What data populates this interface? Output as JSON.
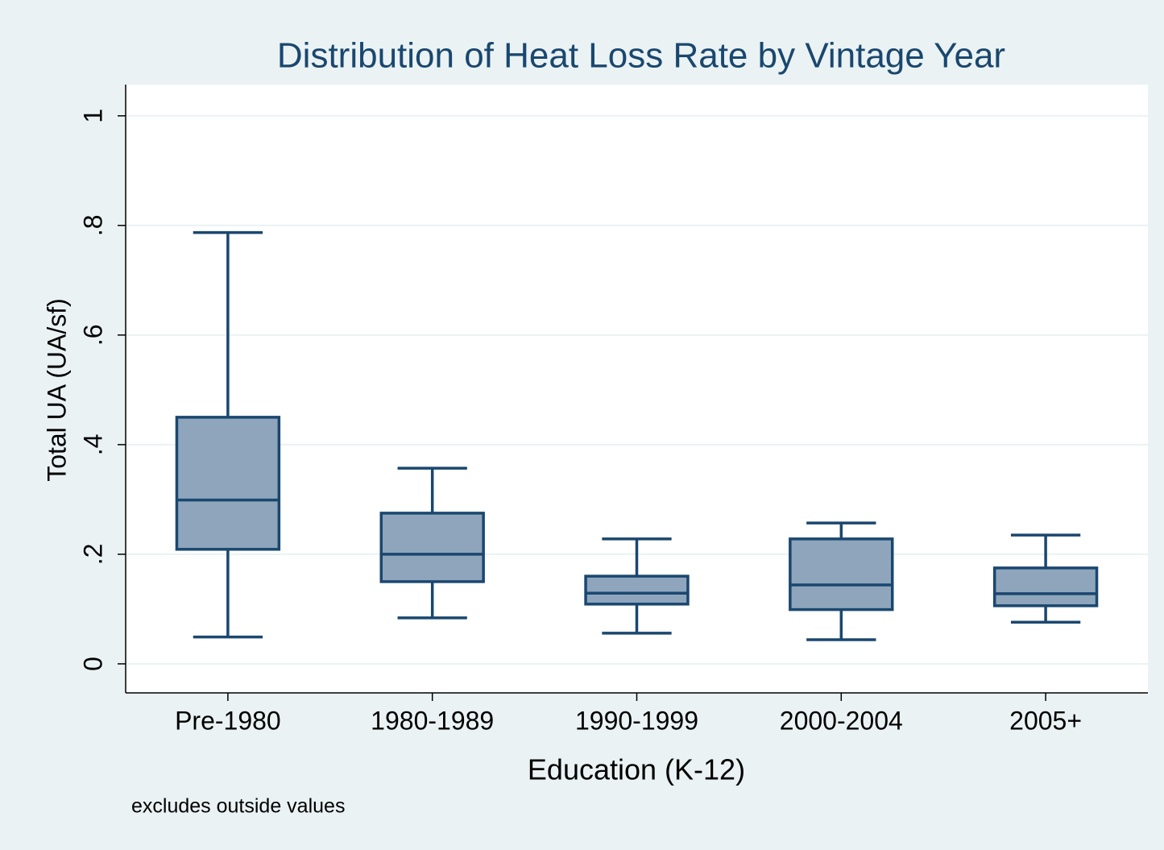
{
  "chart_data": {
    "type": "box",
    "title": "Distribution of Heat Loss Rate by Vintage Year",
    "x_label": "Education (K-12)",
    "y_label": "Total UA (UA/sf)",
    "note": "excludes outside values",
    "categories": [
      "Pre-1980",
      "1980-1989",
      "1990-1999",
      "2000-2004",
      "2005+"
    ],
    "boxes": [
      {
        "whisker_low": 0.049,
        "q1": 0.209,
        "median": 0.299,
        "q3": 0.45,
        "whisker_high": 0.787
      },
      {
        "whisker_low": 0.084,
        "q1": 0.15,
        "median": 0.2,
        "q3": 0.275,
        "whisker_high": 0.357
      },
      {
        "whisker_low": 0.056,
        "q1": 0.109,
        "median": 0.129,
        "q3": 0.16,
        "whisker_high": 0.228
      },
      {
        "whisker_low": 0.044,
        "q1": 0.099,
        "median": 0.144,
        "q3": 0.228,
        "whisker_high": 0.257
      },
      {
        "whisker_low": 0.076,
        "q1": 0.106,
        "median": 0.128,
        "q3": 0.175,
        "whisker_high": 0.235
      }
    ],
    "color": "#8ea5bc",
    "line_color": "#1a476f",
    "ylim": [
      -0.053,
      1.057
    ],
    "yticks": [
      0,
      {
        "value": 0.2,
        "label": ".2"
      },
      {
        "value": 0.4,
        "label": ".4"
      },
      {
        "value": 0.6,
        "label": ".6"
      },
      {
        "value": 0.8,
        "label": ".8"
      },
      1
    ],
    "grid": true
  }
}
